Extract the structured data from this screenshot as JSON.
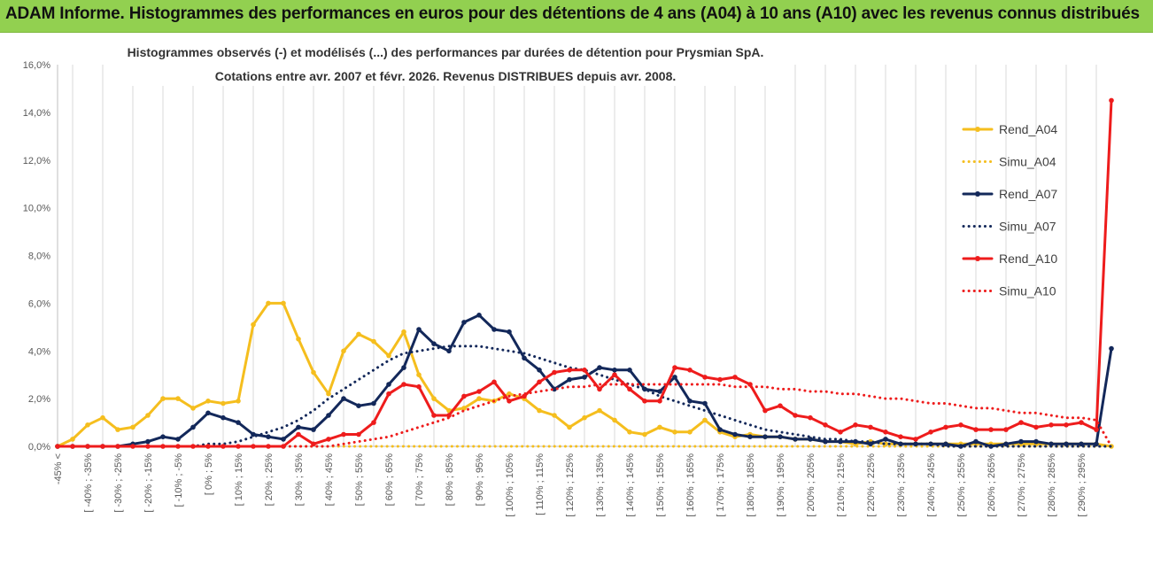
{
  "banner": {
    "title": "ADAM Informe. Histogrammes des performances en euros pour des détentions de 4 ans (A04) à 10 ans (A10) avec les revenus connus distribués",
    "background": "#92d050"
  },
  "chart_data": {
    "type": "line",
    "title": "Histogrammes observés (-) et modélisés (...) des performances par durées de détention pour Prysmian SpA.",
    "subtitle": "Cotations entre avr. 2007 et févr. 2026. Revenus DISTRIBUES depuis avr. 2008.",
    "ylim": [
      0,
      16
    ],
    "yticks": [
      "0,0%",
      "2,0%",
      "4,0%",
      "6,0%",
      "8,0%",
      "10,0%",
      "12,0%",
      "14,0%",
      "16,0%"
    ],
    "grid": "vertical",
    "legend_position": "right",
    "category_labels": [
      "-45% <",
      "[ -40% ; -35%",
      "[ -30% ; -25%",
      "[ -20% ; -15%",
      "[ -10% ; -5%",
      "[ 0% ; 5%",
      "[ 10% ; 15%",
      "[ 20% ; 25%",
      "[ 30% ; 35%",
      "[ 40% ; 45%",
      "[ 50% ; 55%",
      "[ 60% ; 65%",
      "[ 70% ; 75%",
      "[ 80% ; 85%",
      "[ 90% ; 95%",
      "[ 100% ; 105%",
      "[ 110% ; 115%",
      "[ 120% ; 125%",
      "[ 130% ; 135%",
      "[ 140% ; 145%",
      "[ 150% ; 155%",
      "[ 160% ; 165%",
      "[ 170% ; 175%",
      "[ 180% ; 185%",
      "[ 190% ; 195%",
      "[ 200% ; 205%",
      "[ 210% ; 215%",
      "[ 220% ; 225%",
      "[ 230% ; 235%",
      "[ 240% ; 245%",
      "[ 250% ; 255%",
      "[ 260% ; 265%",
      "[ 270% ; 275%",
      "[ 280% ; 285%",
      "[ 290% ; 295%"
    ],
    "n_points": 71,
    "series": [
      {
        "name": "Rend_A04",
        "color": "#f5be1e",
        "style": "solid",
        "values": [
          0,
          0.3,
          0.9,
          1.2,
          0.7,
          0.8,
          1.3,
          2.0,
          2.0,
          1.6,
          1.9,
          1.8,
          1.9,
          5.1,
          6.0,
          6.0,
          4.5,
          3.1,
          2.2,
          4.0,
          4.7,
          4.4,
          3.8,
          4.8,
          3.0,
          2.0,
          1.5,
          1.6,
          2.0,
          1.9,
          2.2,
          2.0,
          1.5,
          1.3,
          0.8,
          1.2,
          1.5,
          1.1,
          0.6,
          0.5,
          0.8,
          0.6,
          0.6,
          1.1,
          0.6,
          0.4,
          0.5,
          0.4,
          0.4,
          0.3,
          0.3,
          0.2,
          0.2,
          0.1,
          0.2,
          0.1,
          0.1,
          0.1,
          0.1,
          0.1,
          0.1,
          0.1,
          0.1,
          0.1,
          0.1,
          0.1,
          0.1,
          0.1,
          0.1,
          0.1,
          0
        ]
      },
      {
        "name": "Simu_A04",
        "color": "#f5be1e",
        "style": "dotted",
        "values": [
          0,
          0,
          0,
          0,
          0,
          0,
          0,
          0,
          0,
          0,
          0,
          0,
          0,
          0,
          0,
          0,
          0,
          0,
          0,
          0,
          0,
          0,
          0,
          0,
          0,
          0,
          0,
          0,
          0,
          0,
          0,
          0,
          0,
          0,
          0,
          0,
          0,
          0,
          0,
          0,
          0,
          0,
          0,
          0,
          0,
          0,
          0,
          0,
          0,
          0,
          0,
          0,
          0,
          0,
          0,
          0,
          0,
          0,
          0,
          0,
          0,
          0,
          0,
          0,
          0,
          0,
          0,
          0,
          0,
          0,
          0
        ]
      },
      {
        "name": "Rend_A07",
        "color": "#13285a",
        "style": "solid",
        "values": [
          0,
          0,
          0,
          0,
          0,
          0.1,
          0.2,
          0.4,
          0.3,
          0.8,
          1.4,
          1.2,
          1.0,
          0.5,
          0.4,
          0.3,
          0.8,
          0.7,
          1.3,
          2.0,
          1.7,
          1.8,
          2.6,
          3.3,
          4.9,
          4.3,
          4.0,
          5.2,
          5.5,
          4.9,
          4.8,
          3.7,
          3.2,
          2.4,
          2.8,
          2.9,
          3.3,
          3.2,
          3.2,
          2.4,
          2.3,
          2.9,
          1.9,
          1.8,
          0.7,
          0.5,
          0.4,
          0.4,
          0.4,
          0.3,
          0.3,
          0.2,
          0.2,
          0.2,
          0.1,
          0.3,
          0.1,
          0.1,
          0.1,
          0.1,
          0,
          0.2,
          0,
          0.1,
          0.2,
          0.2,
          0.1,
          0.1,
          0.1,
          0.1,
          4.1
        ]
      },
      {
        "name": "Simu_A07",
        "color": "#13285a",
        "style": "dotted",
        "values": [
          0,
          0,
          0,
          0,
          0,
          0,
          0,
          0,
          0,
          0,
          0.1,
          0.1,
          0.2,
          0.4,
          0.6,
          0.8,
          1.1,
          1.5,
          2.0,
          2.4,
          2.8,
          3.2,
          3.6,
          3.9,
          4.0,
          4.1,
          4.2,
          4.2,
          4.2,
          4.1,
          4.0,
          3.9,
          3.7,
          3.5,
          3.3,
          3.2,
          3.0,
          2.8,
          2.6,
          2.4,
          2.1,
          1.9,
          1.7,
          1.5,
          1.3,
          1.1,
          0.9,
          0.7,
          0.6,
          0.5,
          0.4,
          0.3,
          0.3,
          0.2,
          0.2,
          0.1,
          0.1,
          0.1,
          0.1,
          0,
          0,
          0,
          0,
          0,
          0,
          0,
          0,
          0,
          0,
          0,
          0
        ]
      },
      {
        "name": "Rend_A10",
        "color": "#ee1c1c",
        "style": "solid",
        "values": [
          0,
          0,
          0,
          0,
          0,
          0,
          0,
          0,
          0,
          0,
          0,
          0,
          0,
          0,
          0,
          0,
          0.5,
          0.1,
          0.3,
          0.5,
          0.5,
          1.0,
          2.2,
          2.6,
          2.5,
          1.3,
          1.3,
          2.1,
          2.3,
          2.7,
          1.9,
          2.1,
          2.7,
          3.1,
          3.2,
          3.2,
          2.4,
          3.0,
          2.4,
          1.9,
          1.9,
          3.3,
          3.2,
          2.9,
          2.8,
          2.9,
          2.6,
          1.5,
          1.7,
          1.3,
          1.2,
          0.9,
          0.6,
          0.9,
          0.8,
          0.6,
          0.4,
          0.3,
          0.6,
          0.8,
          0.9,
          0.7,
          0.7,
          0.7,
          1.0,
          0.8,
          0.9,
          0.9,
          1.0,
          0.7,
          14.5
        ]
      },
      {
        "name": "Simu_A10",
        "color": "#ee1c1c",
        "style": "dotted",
        "values": [
          0,
          0,
          0,
          0,
          0,
          0,
          0,
          0,
          0,
          0,
          0,
          0,
          0,
          0,
          0,
          0,
          0,
          0,
          0,
          0.1,
          0.2,
          0.3,
          0.4,
          0.6,
          0.8,
          1.0,
          1.2,
          1.5,
          1.7,
          1.9,
          2.1,
          2.2,
          2.3,
          2.4,
          2.5,
          2.5,
          2.6,
          2.6,
          2.6,
          2.6,
          2.6,
          2.6,
          2.6,
          2.6,
          2.6,
          2.5,
          2.5,
          2.5,
          2.4,
          2.4,
          2.3,
          2.3,
          2.2,
          2.2,
          2.1,
          2.0,
          2.0,
          1.9,
          1.8,
          1.8,
          1.7,
          1.6,
          1.6,
          1.5,
          1.4,
          1.4,
          1.3,
          1.2,
          1.2,
          1.1,
          0
        ]
      }
    ]
  }
}
